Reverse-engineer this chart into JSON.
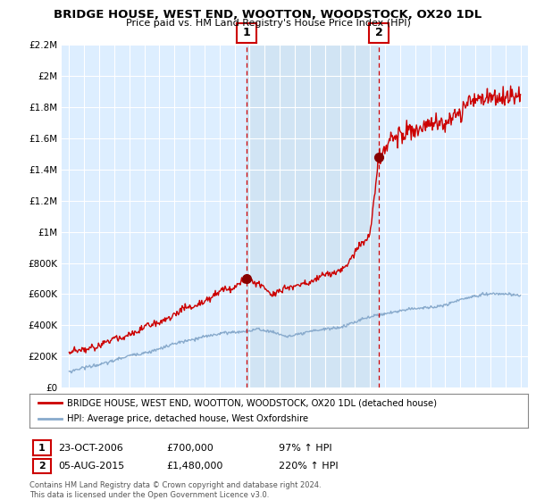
{
  "title": "BRIDGE HOUSE, WEST END, WOOTTON, WOODSTOCK, OX20 1DL",
  "subtitle": "Price paid vs. HM Land Registry's House Price Index (HPI)",
  "legend_line1": "BRIDGE HOUSE, WEST END, WOOTTON, WOODSTOCK, OX20 1DL (detached house)",
  "legend_line2": "HPI: Average price, detached house, West Oxfordshire",
  "annotation1_date": "23-OCT-2006",
  "annotation1_price": "£700,000",
  "annotation1_hpi": "97% ↑ HPI",
  "annotation2_date": "05-AUG-2015",
  "annotation2_price": "£1,480,000",
  "annotation2_hpi": "220% ↑ HPI",
  "footnote": "Contains HM Land Registry data © Crown copyright and database right 2024.\nThis data is licensed under the Open Government Licence v3.0.",
  "ylim": [
    0,
    2200000
  ],
  "yticks": [
    0,
    200000,
    400000,
    600000,
    800000,
    1000000,
    1200000,
    1400000,
    1600000,
    1800000,
    2000000,
    2200000
  ],
  "ytick_labels": [
    "£0",
    "£200K",
    "£400K",
    "£600K",
    "£800K",
    "£1M",
    "£1.2M",
    "£1.4M",
    "£1.6M",
    "£1.8M",
    "£2M",
    "£2.2M"
  ],
  "xmin": 1994.5,
  "xmax": 2025.5,
  "sale1_x": 2006.81,
  "sale1_y": 700000,
  "sale2_x": 2015.59,
  "sale2_y": 1480000,
  "red_line_color": "#cc0000",
  "blue_line_color": "#88aacc",
  "shade_color": "#cce0f0",
  "plot_bg_color": "#ddeeff",
  "marker_color": "#880000",
  "vline_color": "#cc0000",
  "grid_color": "#ffffff",
  "box_color": "#cc0000"
}
